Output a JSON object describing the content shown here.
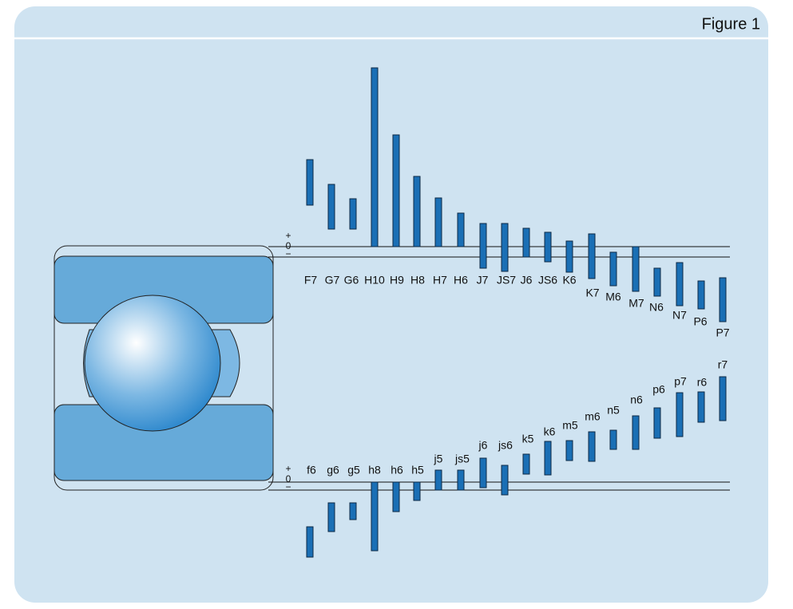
{
  "header": {
    "title": "Figure 1"
  },
  "zero_line": {
    "plus": "+",
    "zero": "0",
    "minus": "−"
  },
  "housing": {
    "labels": [
      "F7",
      "G7",
      "G6",
      "H10",
      "H9",
      "H8",
      "H7",
      "H6",
      "J7",
      "JS7",
      "J6",
      "JS6",
      "K6",
      "K7",
      "M6",
      "M7",
      "N6",
      "N7",
      "P6",
      "P7"
    ]
  },
  "shaft": {
    "labels": [
      "f6",
      "g6",
      "g5",
      "h8",
      "h6",
      "h5",
      "j5",
      "js5",
      "j6",
      "js6",
      "k5",
      "k6",
      "m5",
      "m6",
      "n5",
      "n6",
      "p6",
      "p7",
      "r6",
      "r7"
    ]
  }
}
